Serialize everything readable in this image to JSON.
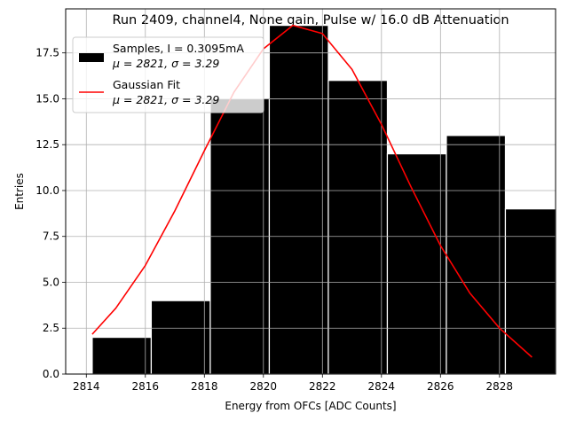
{
  "chart_data": {
    "type": "bar",
    "title": "Run 2409, channel4, None gain, Pulse w/ 16.0 dB Attenuation",
    "xlabel": "Energy from OFCs [ADC Counts]",
    "ylabel": "Entries",
    "xlim": [
      2813.3,
      2829.9
    ],
    "ylim": [
      0,
      19.9
    ],
    "grid": true,
    "legend_placement": "upper-left",
    "x_ticks": [
      "2814",
      "2816",
      "2818",
      "2820",
      "2822",
      "2824",
      "2826",
      "2828"
    ],
    "x_tick_values": [
      2814,
      2816,
      2818,
      2820,
      2822,
      2824,
      2826,
      2828
    ],
    "y_ticks": [
      "0.0",
      "2.5",
      "5.0",
      "7.5",
      "10.0",
      "12.5",
      "15.0",
      "17.5"
    ],
    "y_tick_values": [
      0,
      2.5,
      5,
      7.5,
      10,
      12.5,
      15,
      17.5
    ],
    "bins": [
      {
        "left": 2814.2,
        "right": 2816.2,
        "value": 2
      },
      {
        "left": 2816.2,
        "right": 2818.2,
        "value": 4
      },
      {
        "left": 2818.2,
        "right": 2820.2,
        "value": 15
      },
      {
        "left": 2820.2,
        "right": 2822.2,
        "value": 19
      },
      {
        "left": 2822.2,
        "right": 2824.2,
        "value": 16
      },
      {
        "left": 2824.2,
        "right": 2826.2,
        "value": 12
      },
      {
        "left": 2826.2,
        "right": 2828.2,
        "value": 13
      },
      {
        "left": 2828.2,
        "right": 2830.2,
        "value": 9
      }
    ],
    "series": [
      {
        "name": "Samples, I = 0.3095mA",
        "stats": "μ = 2821, σ = 3.29",
        "color": "#000000",
        "kind": "histogram"
      },
      {
        "name": "Gaussian Fit",
        "stats": "μ = 2821, σ = 3.29",
        "color": "#ff0000",
        "kind": "line",
        "x": [
          2814.2,
          2815,
          2816,
          2817,
          2818,
          2819,
          2820,
          2821,
          2822,
          2823,
          2824,
          2825,
          2826,
          2827,
          2828,
          2829.1
        ],
        "y": [
          2.17,
          3.59,
          5.92,
          8.89,
          12.17,
          15.35,
          17.72,
          19.0,
          18.55,
          16.6,
          13.6,
          10.2,
          7.0,
          4.4,
          2.5,
          0.92
        ]
      }
    ]
  }
}
